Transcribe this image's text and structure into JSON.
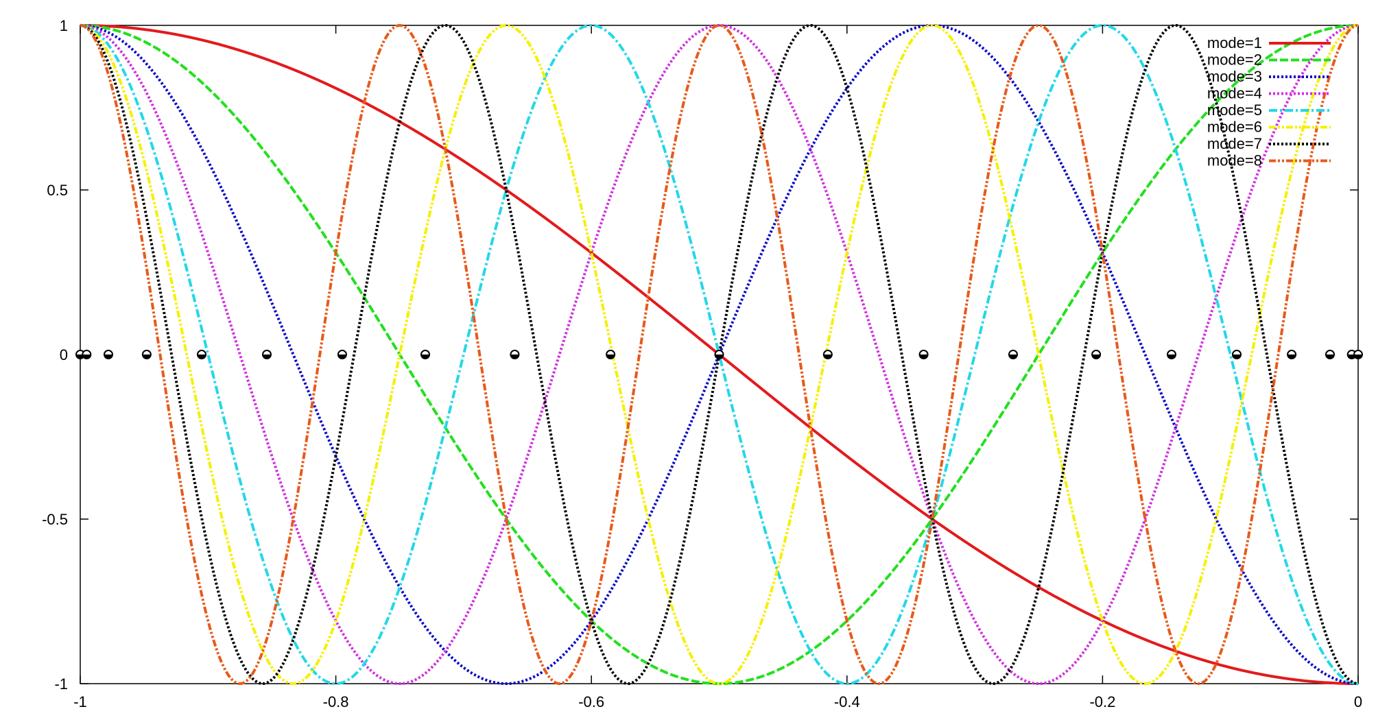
{
  "chart_data": {
    "type": "line",
    "xlim": [
      -1,
      0
    ],
    "ylim": [
      -1,
      1
    ],
    "x_ticks": [
      {
        "value": -1,
        "label": "-1"
      },
      {
        "value": -0.8,
        "label": "-0.8"
      },
      {
        "value": -0.6,
        "label": "-0.6"
      },
      {
        "value": -0.4,
        "label": "-0.4"
      },
      {
        "value": -0.2,
        "label": "-0.2"
      },
      {
        "value": 0,
        "label": "0"
      }
    ],
    "y_ticks": [
      {
        "value": -1,
        "label": "-1"
      },
      {
        "value": -0.5,
        "label": "-0.5"
      },
      {
        "value": 0,
        "label": "0"
      },
      {
        "value": 0.5,
        "label": "0.5"
      },
      {
        "value": 1,
        "label": "1"
      }
    ],
    "grid": false,
    "legend_position": "top-right",
    "series": [
      {
        "name": "mode=1",
        "mode": 1,
        "color": "#e31a1c",
        "dash": "solid"
      },
      {
        "name": "mode=2",
        "mode": 2,
        "color": "#22e01e",
        "dash": "dashed"
      },
      {
        "name": "mode=3",
        "mode": 3,
        "color": "#0a0ac8",
        "dash": "dotted"
      },
      {
        "name": "mode=4",
        "mode": 4,
        "color": "#d22ee0",
        "dash": "dotted"
      },
      {
        "name": "mode=5",
        "mode": 5,
        "color": "#22d8e8",
        "dash": "dash-dot"
      },
      {
        "name": "mode=6",
        "mode": 6,
        "color": "#f5f000",
        "dash": "dash-dot-dot"
      },
      {
        "name": "mode=7",
        "mode": 7,
        "color": "#000000",
        "dash": "dotted"
      },
      {
        "name": "mode=8",
        "mode": 8,
        "color": "#e85a1a",
        "dash": "dash-dot-dot"
      }
    ],
    "marker_points": {
      "y": 0,
      "x": [
        -1.0,
        -0.995,
        -0.978,
        -0.948,
        -0.905,
        -0.854,
        -0.795,
        -0.73,
        -0.66,
        -0.585,
        -0.5,
        -0.415,
        -0.34,
        -0.27,
        -0.205,
        -0.146,
        -0.095,
        -0.052,
        -0.022,
        -0.005,
        0.0
      ]
    }
  }
}
